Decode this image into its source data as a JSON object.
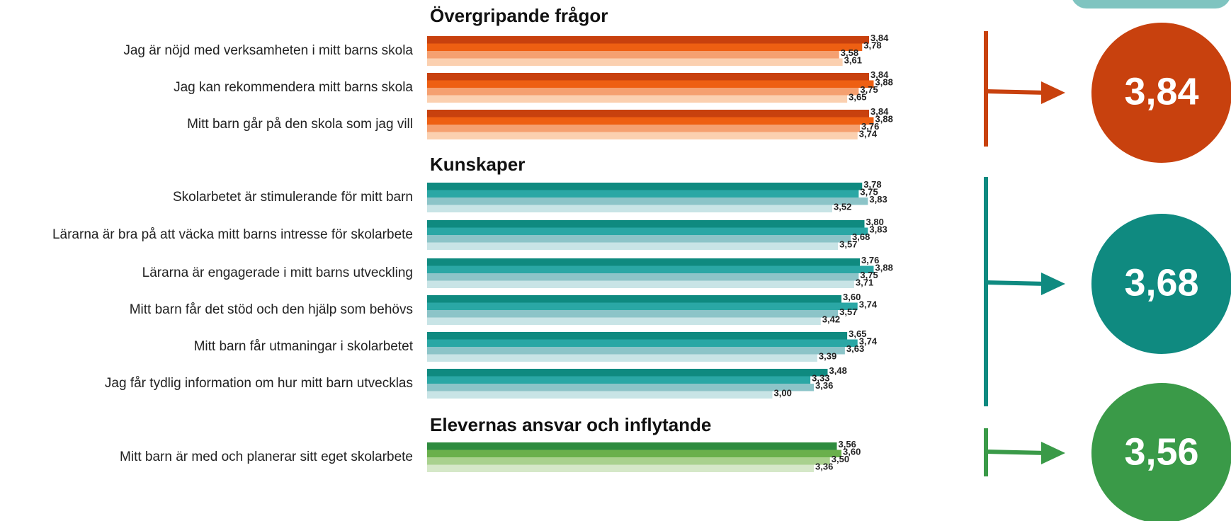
{
  "chart_data": [
    {
      "type": "bar",
      "orientation": "horizontal",
      "title": "Övergripande frågor",
      "categories": [
        "Jag är nöjd med verksamheten i mitt barns skola",
        "Jag kan rekommendera mitt barns skola",
        "Mitt barn går på den skola som jag vill"
      ],
      "series": [
        {
          "color": "#c8410e",
          "values": [
            3.84,
            3.84,
            3.84
          ],
          "value_labels": [
            "3,84",
            "3,84",
            "3,84"
          ]
        },
        {
          "color": "#ee5f12",
          "values": [
            3.78,
            3.88,
            3.88
          ],
          "value_labels": [
            "3,78",
            "3,88",
            "3,88"
          ]
        },
        {
          "color": "#f5a070",
          "values": [
            3.58,
            3.75,
            3.76
          ],
          "value_labels": [
            "3,58",
            "3,75",
            "3,76"
          ]
        },
        {
          "color": "#fbd0b0",
          "values": [
            3.61,
            3.65,
            3.74
          ],
          "value_labels": [
            "3,61",
            "3,65",
            "3,74"
          ]
        }
      ],
      "summary": {
        "value": 3.84,
        "label": "3,84"
      },
      "summary_color": "#c8410e"
    },
    {
      "type": "bar",
      "orientation": "horizontal",
      "title": "Kunskaper",
      "categories": [
        "Skolarbetet är stimulerande för mitt barn",
        "Lärarna är bra på att väcka mitt barns intresse för skolarbete",
        "Lärarna är engagerade i mitt barns utveckling",
        "Mitt barn får det stöd och den hjälp som behövs",
        "Mitt barn får utmaningar i skolarbetet",
        "Jag får tydlig information om hur mitt barn utvecklas"
      ],
      "series": [
        {
          "color": "#0f8a80",
          "values": [
            3.78,
            3.8,
            3.76,
            3.6,
            3.65,
            3.48
          ],
          "value_labels": [
            "3,78",
            "3,80",
            "3,76",
            "3,60",
            "3,65",
            "3,48"
          ]
        },
        {
          "color": "#2aa7a5",
          "values": [
            3.75,
            3.83,
            3.88,
            3.74,
            3.74,
            3.33
          ],
          "value_labels": [
            "3,75",
            "3,83",
            "3,88",
            "3,74",
            "3,74",
            "3,33"
          ]
        },
        {
          "color": "#8cc4c8",
          "values": [
            3.83,
            3.68,
            3.75,
            3.57,
            3.63,
            3.36
          ],
          "value_labels": [
            "3,83",
            "3,68",
            "3,75",
            "3,57",
            "3,63",
            "3,36"
          ]
        },
        {
          "color": "#c8e4e6",
          "values": [
            3.52,
            3.57,
            3.71,
            3.42,
            3.39,
            3.0
          ],
          "value_labels": [
            "3,52",
            "3,57",
            "3,71",
            "3,42",
            "3,39",
            "3,00"
          ]
        }
      ],
      "summary": {
        "value": 3.68,
        "label": "3,68"
      },
      "summary_color": "#0f8a80"
    },
    {
      "type": "bar",
      "orientation": "horizontal",
      "title": "Elevernas ansvar och inflytande",
      "categories": [
        "Mitt barn är med och planerar sitt eget skolarbete"
      ],
      "series": [
        {
          "color": "#2e8b3e",
          "values": [
            3.56
          ],
          "value_labels": [
            "3,56"
          ]
        },
        {
          "color": "#6ab04c",
          "values": [
            3.6
          ],
          "value_labels": [
            "3,60"
          ]
        },
        {
          "color": "#a9d18e",
          "values": [
            3.5
          ],
          "value_labels": [
            "3,50"
          ]
        },
        {
          "color": "#d5e8c8",
          "values": [
            3.36
          ],
          "value_labels": [
            "3,36"
          ]
        }
      ],
      "summary": {
        "value": 3.56,
        "label": "3,56"
      },
      "summary_color": "#3a9a48"
    }
  ]
}
